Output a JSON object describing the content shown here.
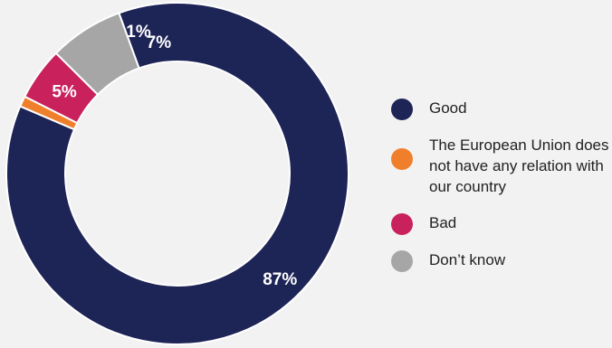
{
  "chart_data": {
    "type": "pie",
    "donut": true,
    "categories": [
      "Good",
      "The European Union does not have any relation with our country",
      "Bad",
      "Don’t know"
    ],
    "values": [
      87,
      1,
      5,
      7
    ],
    "value_labels": [
      "87%",
      "1%",
      "5%",
      "7%"
    ],
    "colors": [
      "#1d2456",
      "#f07f2c",
      "#c8215c",
      "#a6a6a6"
    ],
    "legend_placement": "right"
  },
  "legend": {
    "items": [
      {
        "label": "Good",
        "color": "#1d2456"
      },
      {
        "label": "The European Union does not have any relation with our country",
        "color": "#f07f2c"
      },
      {
        "label": "Bad",
        "color": "#c8215c"
      },
      {
        "label": "Don’t know",
        "color": "#a6a6a6"
      }
    ]
  }
}
